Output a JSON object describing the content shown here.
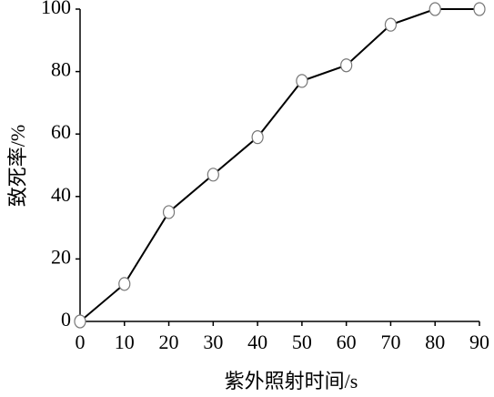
{
  "chart_data": {
    "type": "line",
    "xlabel": "紫外照射时间/s",
    "ylabel": "致死率/%",
    "x": [
      0,
      10,
      20,
      30,
      40,
      50,
      60,
      70,
      80,
      90
    ],
    "series": [
      {
        "color": "#000000",
        "values": [
          0,
          12,
          35,
          47,
          59,
          77,
          82,
          95,
          100,
          100
        ]
      }
    ],
    "xlim": [
      0,
      90
    ],
    "xticks": [
      0,
      10,
      20,
      30,
      40,
      50,
      60,
      70,
      80,
      90
    ],
    "ylim": [
      0,
      100
    ],
    "yticks": [
      0,
      20,
      40,
      60,
      80,
      100
    ]
  }
}
